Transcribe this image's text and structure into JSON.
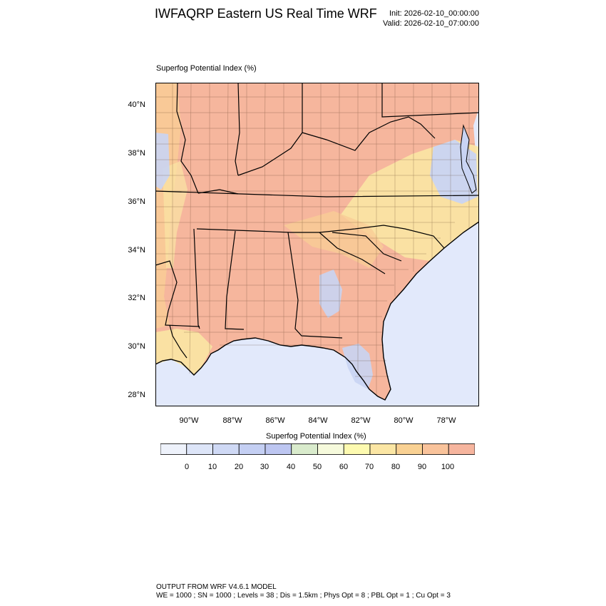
{
  "header": {
    "title": "IWFAQRP Eastern US Real Time WRF",
    "init": "Init: 2026-02-10_00:00:00",
    "valid": "Valid: 2026-02-10_07:00:00"
  },
  "map": {
    "field_label": "Superfog Potential Index   (%)",
    "lat_labels": [
      "40°N",
      "38°N",
      "36°N",
      "34°N",
      "32°N",
      "30°N",
      "28°N"
    ],
    "lon_labels": [
      "90°W",
      "88°W",
      "86°W",
      "84°W",
      "82°W",
      "80°W",
      "78°W"
    ],
    "colors": {
      "ocean": "#e2e9fb",
      "high": "#f6b69d",
      "mid_high": "#f9cd96",
      "mid": "#fbe6a4",
      "low": "#c9d4f3",
      "county_line": "#5a3a22",
      "state_line": "#000000"
    }
  },
  "colorbar": {
    "title": "Superfog Potential Index  (%)",
    "labels": [
      "0",
      "10",
      "20",
      "30",
      "40",
      "50",
      "60",
      "70",
      "80",
      "90",
      "100"
    ],
    "colors": [
      "#eef2fb",
      "#dde5f8",
      "#cfd9f5",
      "#c4cff3",
      "#bdc6f1",
      "#d9ebcc",
      "#f6fadc",
      "#fdfab0",
      "#fbe6a4",
      "#f9d193",
      "#f9c39b",
      "#f6b59e"
    ]
  },
  "footer": {
    "line1": "OUTPUT FROM WRF V4.6.1 MODEL",
    "line2": "WE = 1000 ; SN = 1000 ; Levels = 38 ; Dis = 1.5km ; Phys Opt = 8 ; PBL Opt = 1 ; Cu Opt = 3"
  }
}
